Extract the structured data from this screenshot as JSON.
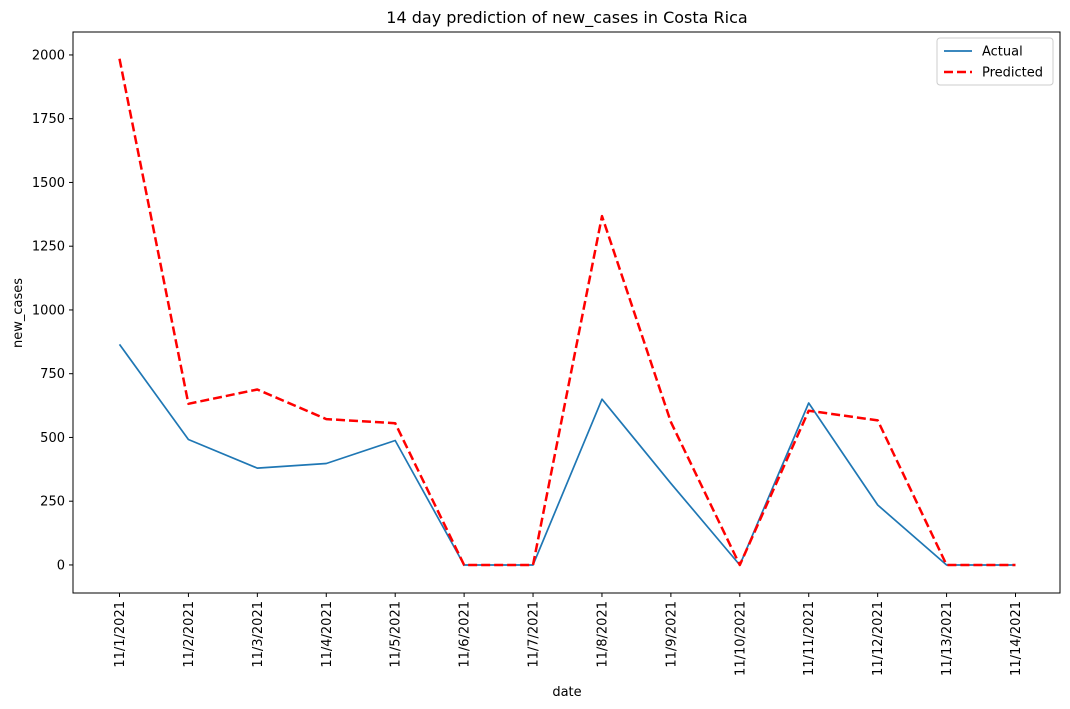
{
  "chart_data": {
    "type": "line",
    "title": "14 day prediction of new_cases in Costa Rica",
    "xlabel": "date",
    "ylabel": "new_cases",
    "categories": [
      "11/1/2021",
      "11/2/2021",
      "11/3/2021",
      "11/4/2021",
      "11/5/2021",
      "11/6/2021",
      "11/7/2021",
      "11/8/2021",
      "11/9/2021",
      "11/10/2021",
      "11/11/2021",
      "11/12/2021",
      "11/13/2021",
      "11/14/2021"
    ],
    "ylim": [
      -110,
      2090
    ],
    "yticks": [
      0,
      250,
      500,
      750,
      1000,
      1250,
      1500,
      1750,
      2000
    ],
    "grid": false,
    "legend_position": "top-right",
    "series": [
      {
        "name": "Actual",
        "color": "#1f77b4",
        "style": "solid",
        "values": [
          865,
          492,
          380,
          398,
          488,
          0,
          0,
          650,
          320,
          0,
          635,
          235,
          0,
          0
        ]
      },
      {
        "name": "Predicted",
        "color": "#ff0000",
        "style": "dashed",
        "values": [
          1985,
          632,
          688,
          572,
          556,
          0,
          0,
          1368,
          560,
          0,
          605,
          567,
          0,
          0
        ]
      }
    ]
  }
}
